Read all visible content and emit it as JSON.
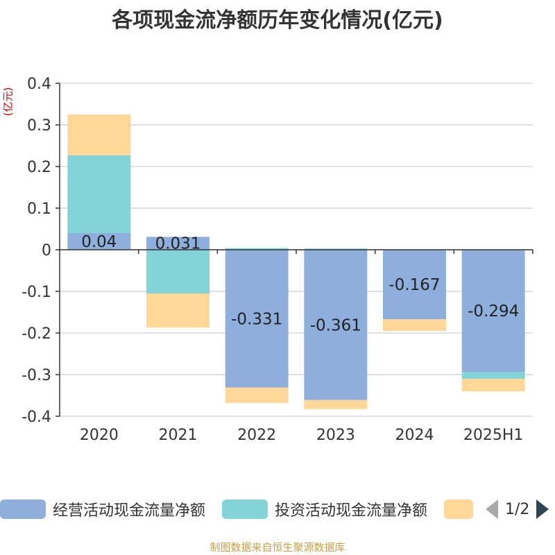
{
  "title": "各项现金流净额历年变化情况(亿元)",
  "unit_label": "(亿元)",
  "source": "制图数据来自恒生聚源数据库",
  "legend": {
    "items": [
      {
        "label": "经营活动现金流量净额",
        "color": "#8eaedb"
      },
      {
        "label": "投资活动现金流量净额",
        "color": "#82d4d6"
      },
      {
        "label": "",
        "color": "#ffd796"
      }
    ],
    "page": "1/2"
  },
  "chart_data": {
    "type": "bar",
    "stacked": true,
    "categories": [
      "2020",
      "2021",
      "2022",
      "2023",
      "2024",
      "2025H1"
    ],
    "ylim": [
      -0.4,
      0.4
    ],
    "yticks": [
      "0.4",
      "0.3",
      "0.2",
      "0.1",
      "0",
      "-0.1",
      "-0.2",
      "-0.3",
      "-0.4"
    ],
    "grid": true,
    "series": [
      {
        "name": "经营活动现金流量净额",
        "color": "#8eaedb",
        "values": [
          0.04,
          0.031,
          -0.331,
          -0.361,
          -0.167,
          -0.294
        ],
        "labels": [
          "0.04",
          "0.031",
          "-0.331",
          "-0.361",
          "-0.167",
          "-0.294"
        ]
      },
      {
        "name": "投资活动现金流量净额",
        "color": "#82d4d6",
        "values": [
          0.187,
          -0.105,
          0.004,
          0.003,
          0,
          -0.016
        ]
      },
      {
        "color": "#ffd796",
        "values": [
          0.098,
          -0.082,
          -0.037,
          -0.022,
          -0.028,
          -0.03
        ]
      }
    ]
  }
}
